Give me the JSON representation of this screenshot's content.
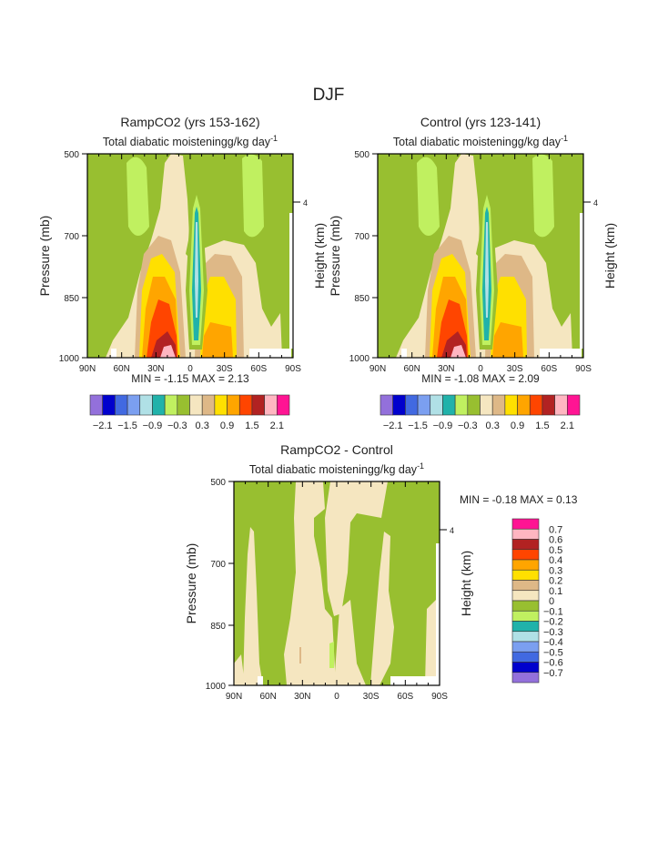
{
  "chart_data": {
    "type": "heatmap",
    "title": "DJF",
    "palette": [
      "#9370DB",
      "#0000CD",
      "#4169E1",
      "#7B9FF0",
      "#B0E0E6",
      "#20B2AA",
      "#C0F060",
      "#98BF30",
      "#F5E6C0",
      "#DEB887",
      "#FFE000",
      "#FFA500",
      "#FF4500",
      "#B22222",
      "#FFB6C1",
      "#FF1493"
    ],
    "missing_color": "#FFFFFF",
    "x_ticks": [
      "90N",
      "60N",
      "30N",
      "0",
      "30S",
      "60S",
      "90S"
    ],
    "y_ticks": [
      "500",
      "700",
      "850",
      "1000"
    ],
    "y_values": [
      500,
      700,
      850,
      1000
    ],
    "right_ticks": [
      "4"
    ],
    "ylabel": "Pressure (mb)",
    "ylabel_right": "Height (km)",
    "subtitle_main": "Total diabatic moistening",
    "subtitle_units": "g/kg day",
    "subtitle_exp": "-1",
    "panels": [
      {
        "title": "RampCO2 (yrs 153-162)",
        "min_label": "MIN =",
        "min": "-1.15",
        "max_label": "MAX =",
        "max": "2.13",
        "levels": [
          -2.1,
          -1.8,
          -1.5,
          -1.2,
          -0.9,
          -0.6,
          -0.3,
          0,
          0.3,
          0.6,
          0.9,
          1.2,
          1.5,
          1.8,
          2.1
        ],
        "colorbar_labels": [
          "-2.1",
          "-1.5",
          "-0.9",
          "-0.3",
          "0.3",
          "0.9",
          "1.5",
          "2.1"
        ]
      },
      {
        "title": "Control (yrs 123-141)",
        "min_label": "MIN =",
        "min": "-1.08",
        "max_label": "MAX =",
        "max": "2.09",
        "levels": [
          -2.1,
          -1.8,
          -1.5,
          -1.2,
          -0.9,
          -0.6,
          -0.3,
          0,
          0.3,
          0.6,
          0.9,
          1.2,
          1.5,
          1.8,
          2.1
        ],
        "colorbar_labels": [
          "-2.1",
          "-1.5",
          "-0.9",
          "-0.3",
          "0.3",
          "0.9",
          "1.5",
          "2.1"
        ]
      },
      {
        "title": "RampCO2 - Control",
        "min_label": "MIN =",
        "min": "-0.18",
        "max_label": "MAX =",
        "max": "0.13",
        "levels": [
          -0.7,
          -0.6,
          -0.5,
          -0.4,
          -0.3,
          -0.2,
          -0.1,
          0,
          0.1,
          0.2,
          0.3,
          0.4,
          0.5,
          0.6,
          0.7
        ],
        "colorbar_labels": [
          "0.7",
          "0.6",
          "0.5",
          "0.4",
          "0.3",
          "0.2",
          "0.1",
          "0",
          "-0.1",
          "-0.2",
          "-0.3",
          "-0.4",
          "-0.5",
          "-0.6",
          "-0.7"
        ]
      }
    ]
  }
}
